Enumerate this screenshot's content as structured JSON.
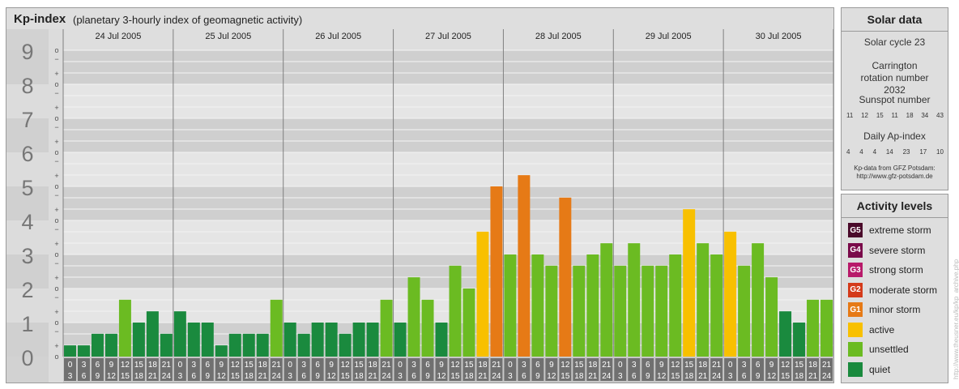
{
  "header": {
    "title": "Kp-index",
    "subtitle": "(planetary 3-hourly index of geomagnetic activity)"
  },
  "chart_data": {
    "type": "bar",
    "title": "Kp-index",
    "subtitle": "(planetary 3-hourly index of geomagnetic activity)",
    "ylim": [
      0,
      9
    ],
    "y_ticks": [
      "0",
      "1",
      "2",
      "3",
      "4",
      "5",
      "6",
      "7",
      "8",
      "9"
    ],
    "minor_ticks": [
      "+",
      "o",
      "−"
    ],
    "dates": [
      "24 Jul 2005",
      "25 Jul 2005",
      "26 Jul 2005",
      "27 Jul 2005",
      "28 Jul 2005",
      "29 Jul 2005",
      "30 Jul 2005"
    ],
    "interval_start": [
      "0",
      "3",
      "6",
      "9",
      "12",
      "15",
      "18",
      "21"
    ],
    "interval_end": [
      "3",
      "6",
      "9",
      "12",
      "15",
      "18",
      "21",
      "24"
    ],
    "values": [
      [
        0.33,
        0.33,
        0.67,
        0.67,
        1.67,
        1.0,
        1.33,
        0.67
      ],
      [
        1.33,
        1.0,
        1.0,
        0.33,
        0.67,
        0.67,
        0.67,
        1.67
      ],
      [
        1.0,
        0.67,
        1.0,
        1.0,
        0.67,
        1.0,
        1.0,
        1.67
      ],
      [
        1.0,
        2.33,
        1.67,
        1.0,
        2.67,
        2.0,
        3.67,
        5.0
      ],
      [
        3.0,
        5.33,
        3.0,
        2.67,
        4.67,
        2.67,
        3.0,
        3.33
      ],
      [
        2.67,
        3.33,
        2.67,
        2.67,
        3.0,
        4.33,
        3.33,
        3.0
      ],
      [
        3.67,
        2.67,
        3.33,
        2.33,
        1.33,
        1.0,
        1.67,
        1.67
      ]
    ],
    "colors": {
      "quiet": "#1a8a3e",
      "unsettled": "#6bbb22",
      "active": "#f8c000",
      "minor_storm": "#e67a16"
    },
    "grid": true
  },
  "solar": {
    "title": "Solar data",
    "cycle": "Solar cycle 23",
    "carrington": "Carrington rotation number 2032",
    "sunspot_title": "Sunspot number",
    "sunspot_values": [
      "11",
      "12",
      "15",
      "11",
      "18",
      "34",
      "43"
    ],
    "ap_title": "Daily Ap-index",
    "ap_values": [
      "4",
      "4",
      "4",
      "14",
      "23",
      "17",
      "10"
    ],
    "credit_line1": "Kp-data from GFZ Potsdam:",
    "credit_line2": "http://www.gfz-potsdam.de"
  },
  "activity": {
    "title": "Activity levels",
    "items": [
      {
        "badge": "G5",
        "label": "extreme storm",
        "color": "#4a0a2a"
      },
      {
        "badge": "G4",
        "label": "severe storm",
        "color": "#7a0a4a"
      },
      {
        "badge": "G3",
        "label": "strong storm",
        "color": "#b81a6a"
      },
      {
        "badge": "G2",
        "label": "moderate storm",
        "color": "#d43a1a"
      },
      {
        "badge": "G1",
        "label": "minor storm",
        "color": "#e67a16"
      },
      {
        "badge": "",
        "label": "active",
        "color": "#f8c000"
      },
      {
        "badge": "",
        "label": "unsettled",
        "color": "#6bbb22"
      },
      {
        "badge": "",
        "label": "quiet",
        "color": "#1a8a3e"
      }
    ]
  },
  "footer": {
    "url": "http://www.theusner.eu/kp/kp_archive.php"
  }
}
